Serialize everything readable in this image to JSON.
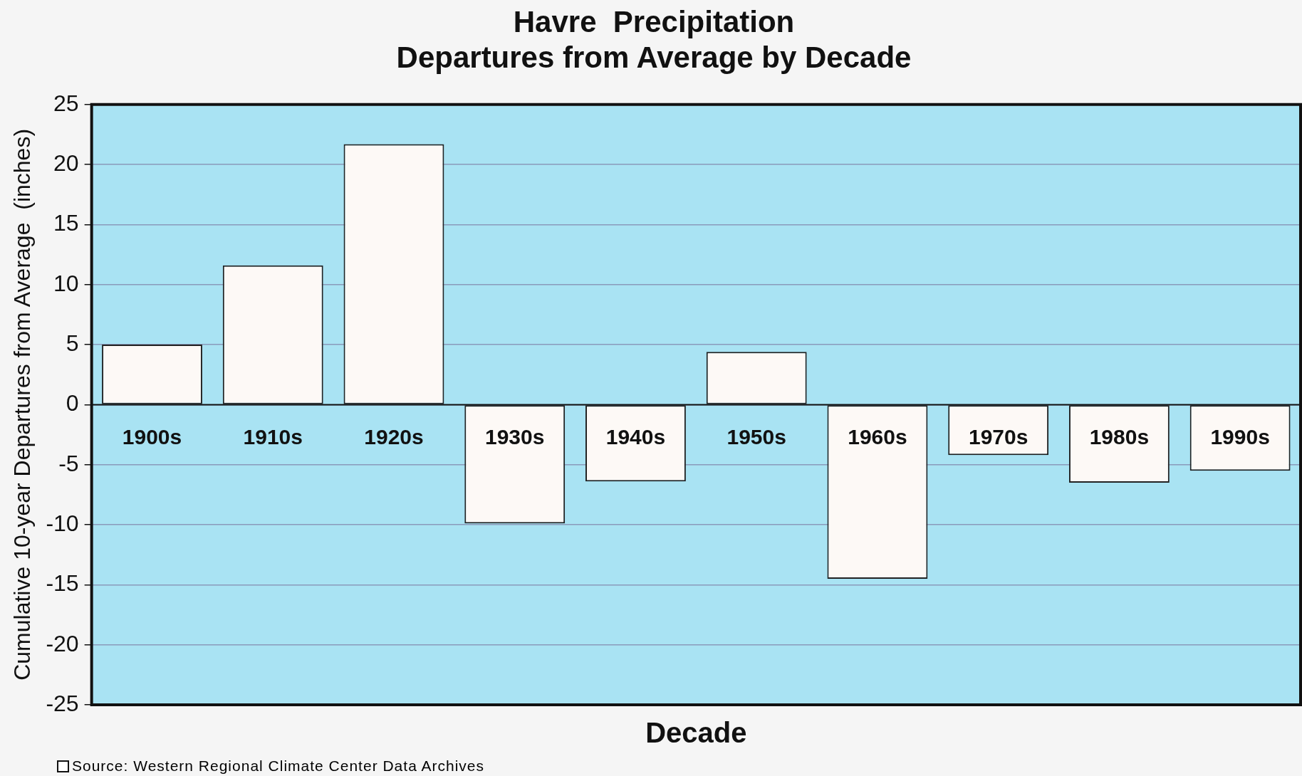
{
  "chart_data": {
    "type": "bar",
    "title": [
      "Havre  Precipitation",
      "Departures from Average by Decade"
    ],
    "xlabel": "Decade",
    "ylabel": "Cumulative 10-year Departures from Average  (inches)",
    "categories": [
      "1900s",
      "1910s",
      "1920s",
      "1930s",
      "1940s",
      "1950s",
      "1960s",
      "1970s",
      "1980s",
      "1990s"
    ],
    "values": [
      5.0,
      11.6,
      21.7,
      -9.9,
      -6.4,
      4.4,
      -14.5,
      -4.2,
      -6.5,
      -5.5
    ],
    "color": "#fdf9f6",
    "ylim": [
      -25,
      25
    ],
    "yticks": [
      -25,
      -20,
      -15,
      -10,
      -5,
      0,
      5,
      10,
      15,
      20,
      25
    ],
    "grid": "y",
    "legend": false,
    "annotations": [
      "Source: Western Regional Climate Center Data Archives"
    ]
  }
}
